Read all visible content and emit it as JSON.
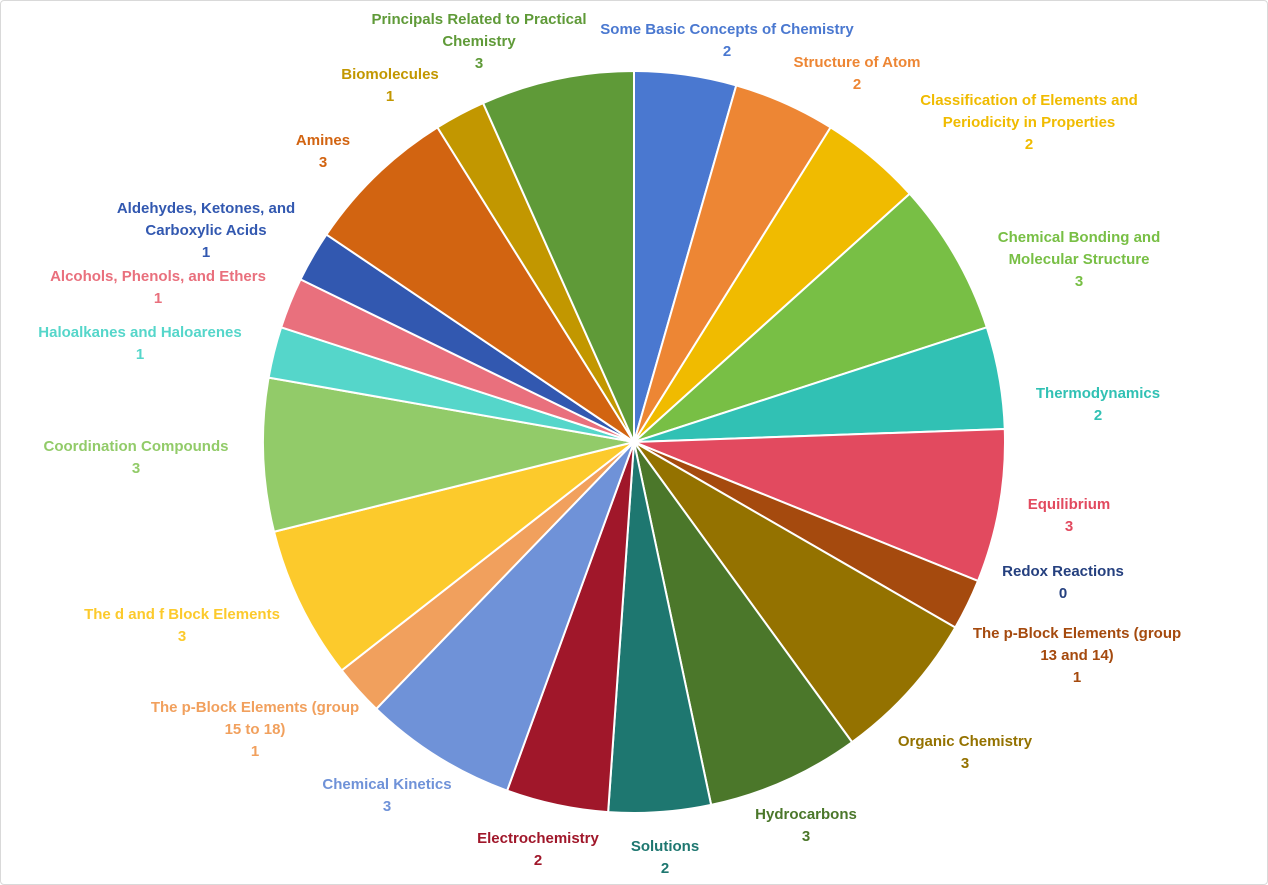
{
  "chart_data": {
    "type": "pie",
    "title": "",
    "categories": [
      "Some Basic Concepts of Chemistry",
      "Structure of Atom",
      "Classification of Elements and Periodicity in Properties",
      "Chemical Bonding and Molecular Structure",
      "Thermodynamics",
      "Equilibrium",
      "Redox Reactions",
      "The p-Block Elements (group 13 and 14)",
      "Organic Chemistry",
      "Hydrocarbons",
      "Solutions",
      "Electrochemistry",
      "Chemical Kinetics",
      "The p-Block Elements (group 15 to 18)",
      "The d and f Block Elements",
      "Coordination Compounds",
      "Haloalkanes and Haloarenes",
      "Alcohols, Phenols, and Ethers",
      "Aldehydes, Ketones, and Carboxylic Acids",
      "Amines",
      "Biomolecules",
      "Principals Related to Practical Chemistry"
    ],
    "values": [
      2,
      2,
      2,
      3,
      2,
      3,
      0,
      1,
      3,
      3,
      2,
      2,
      3,
      1,
      3,
      3,
      1,
      1,
      1,
      3,
      1,
      3
    ],
    "label_lines": [
      [
        "Some Basic Concepts of Chemistry"
      ],
      [
        "Structure of Atom"
      ],
      [
        "Classification of Elements and",
        "Periodicity in Properties"
      ],
      [
        "Chemical Bonding and",
        "Molecular Structure"
      ],
      [
        "Thermodynamics"
      ],
      [
        "Equilibrium"
      ],
      [
        "Redox Reactions"
      ],
      [
        "The p-Block Elements (group",
        "13 and 14)"
      ],
      [
        "Organic Chemistry"
      ],
      [
        "Hydrocarbons"
      ],
      [
        "Solutions"
      ],
      [
        "Electrochemistry"
      ],
      [
        "Chemical Kinetics"
      ],
      [
        "The p-Block Elements (group",
        "15 to 18)"
      ],
      [
        "The d and f Block Elements"
      ],
      [
        "Coordination Compounds"
      ],
      [
        "Haloalkanes and Haloarenes"
      ],
      [
        "Alcohols, Phenols, and Ethers"
      ],
      [
        "Aldehydes, Ketones, and",
        "Carboxylic Acids"
      ],
      [
        "Amines"
      ],
      [
        "Biomolecules"
      ],
      [
        "Principals Related to Practical",
        "Chemistry"
      ]
    ],
    "colors": [
      "#4a78d0",
      "#ed8634",
      "#f0bb00",
      "#78bf45",
      "#31c1b4",
      "#e24a5f",
      "#25407f",
      "#a54a0e",
      "#947200",
      "#4b772a",
      "#1e7770",
      "#a0172a",
      "#6f92d8",
      "#f1a05d",
      "#fcca2c",
      "#92cb69",
      "#55d6ca",
      "#e9707d",
      "#3258b0",
      "#d26411",
      "#c29700",
      "#5f9a38"
    ],
    "label_colors": [
      "#4a78d0",
      "#ed8634",
      "#f0bb00",
      "#78bf45",
      "#31c1b4",
      "#e24a5f",
      "#25407f",
      "#a54a0e",
      "#947200",
      "#4b772a",
      "#1e7770",
      "#a0172a",
      "#6f92d8",
      "#f1a05d",
      "#fcca2c",
      "#92cb69",
      "#55d6ca",
      "#e9707d",
      "#3258b0",
      "#d26411",
      "#c29700",
      "#5f9a38"
    ],
    "start_angle": "12 o'clock",
    "direction": "clockwise",
    "slice_border": "#ffffff",
    "legend": "none",
    "data_labels": "category name and value"
  }
}
